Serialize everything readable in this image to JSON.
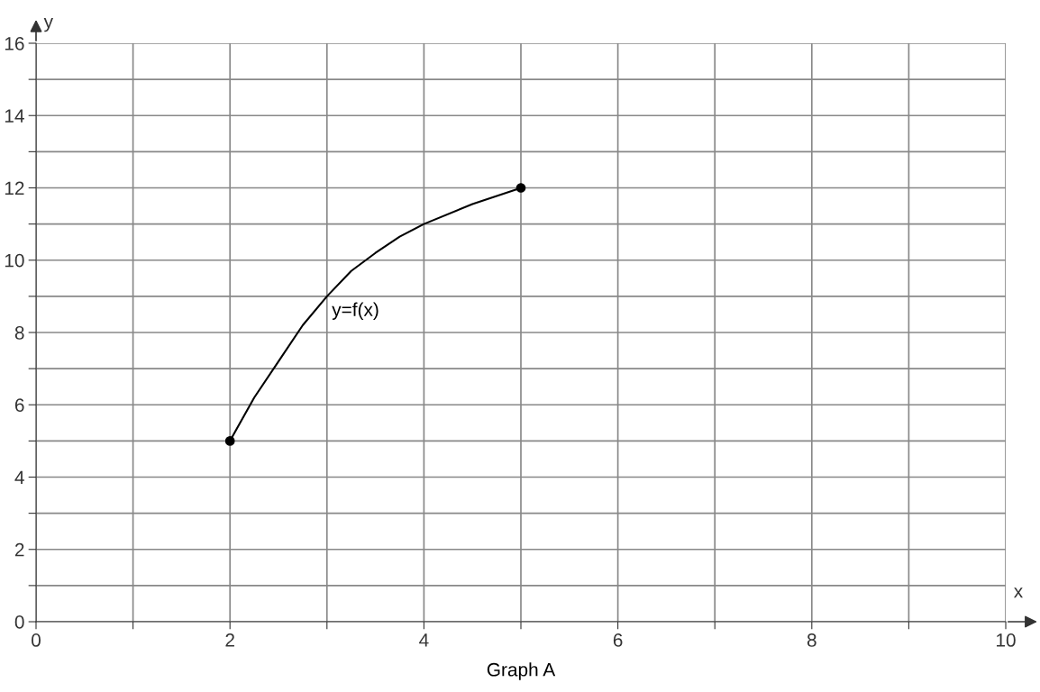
{
  "chart_data": {
    "type": "line",
    "xlabel": "x",
    "ylabel": "y",
    "series": [
      {
        "color": "#000000",
        "marker": "none",
        "x": [
          2,
          2.25,
          2.5,
          2.75,
          3,
          3.25,
          3.5,
          3.75,
          4,
          4.5,
          5
        ],
        "values": [
          5,
          6.2,
          7.2,
          8.2,
          9,
          9.7,
          10.2,
          10.65,
          11,
          11.55,
          12
        ]
      },
      {
        "type": "scatter",
        "color": "#000000",
        "marker": "circle",
        "x": [
          2,
          5
        ],
        "values": [
          5,
          12
        ]
      }
    ],
    "annotations": [
      "y=f(x)",
      "Graph A"
    ],
    "xlim": [
      0,
      10
    ],
    "ylim": [
      0,
      16
    ],
    "xticks": [
      0,
      {
        "value": 1,
        "label": null
      },
      2,
      {
        "value": 3,
        "label": null
      },
      4,
      {
        "value": 5,
        "label": null
      },
      6,
      {
        "value": 7,
        "label": null
      },
      8,
      {
        "value": 9,
        "label": null
      },
      10
    ],
    "yticks": [
      0,
      {
        "value": 1,
        "label": null
      },
      2,
      {
        "value": 3,
        "label": null
      },
      4,
      {
        "value": 5,
        "label": null
      },
      6,
      {
        "value": 7,
        "label": null
      },
      8,
      {
        "value": 9,
        "label": null
      },
      10,
      {
        "value": 11,
        "label": null
      },
      12,
      {
        "value": 13,
        "label": null
      },
      14,
      {
        "value": 15,
        "label": null
      },
      16
    ],
    "grid": true,
    "legend": false
  }
}
